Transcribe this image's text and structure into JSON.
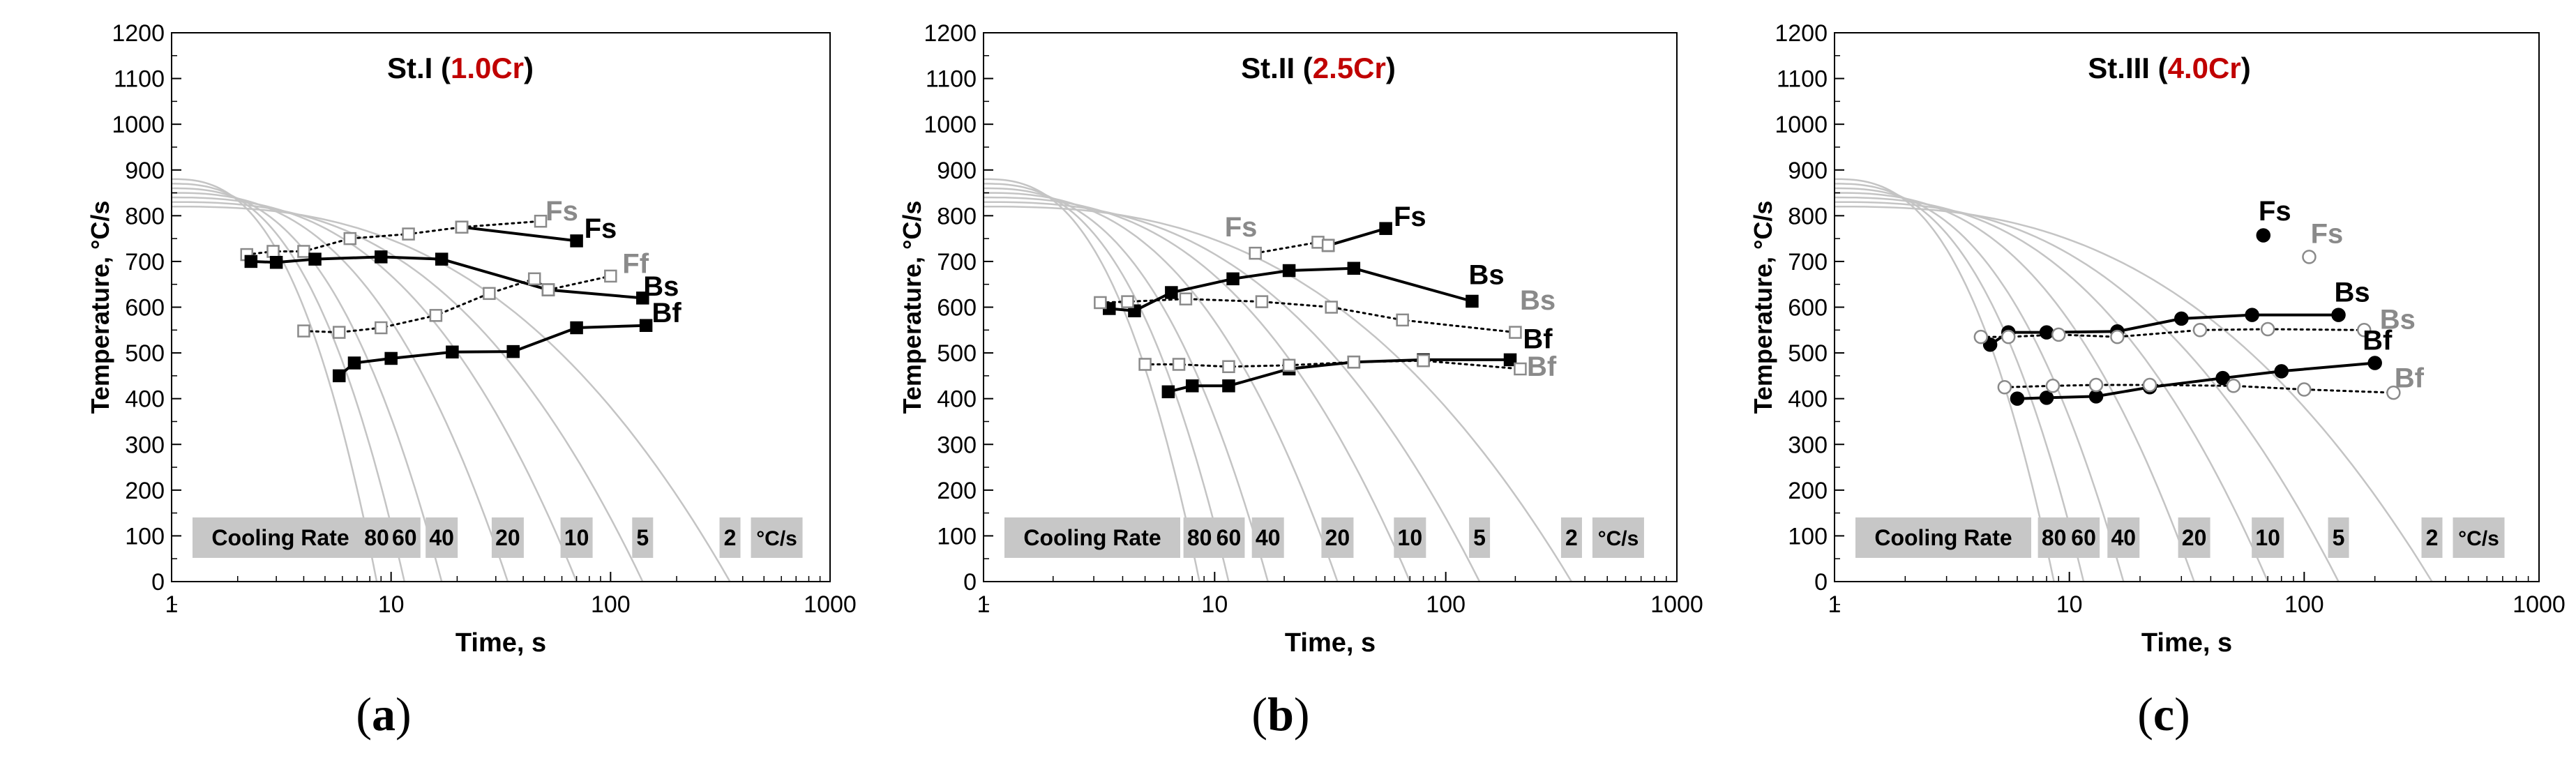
{
  "figure": {
    "axis_labels": {
      "x": "Time, s",
      "y": "Temperature, °C/s"
    },
    "cooling_rate_label": "Cooling Rate",
    "rate_unit": "°C/s",
    "rate_boxes": [
      "80",
      "60",
      "40",
      "20",
      "10",
      "5",
      "2"
    ],
    "colors": {
      "curve": "#c4c4c4",
      "solid": "#000000",
      "open": "#8a8a8a",
      "box": "#c7c7c7",
      "title_accent": "#c00000"
    }
  },
  "panels": [
    {
      "letter": "a",
      "title": "St.I",
      "title_cr": "1.0Cr"
    },
    {
      "letter": "b",
      "title": "St.II",
      "title_cr": "2.5Cr"
    },
    {
      "letter": "c",
      "title": "St.III",
      "title_cr": "4.0Cr"
    }
  ],
  "chart_data": [
    {
      "type": "line",
      "title": "St.I (1.0Cr)",
      "xlabel": "Time, s",
      "ylabel": "Temperature, °C/s",
      "xscale": "log",
      "xlim": [
        1,
        1000
      ],
      "ylim": [
        0,
        1200
      ],
      "xticks": [
        "1",
        "10",
        "100",
        "1000"
      ],
      "yticks": [
        "0",
        "100",
        "200",
        "300",
        "400",
        "500",
        "600",
        "700",
        "800",
        "900",
        "1000",
        "1100",
        "1200"
      ],
      "cooling_curves": [
        {
          "rate": "80",
          "end_time": 8.6
        },
        {
          "rate": "60",
          "end_time": 11.5
        },
        {
          "rate": "40",
          "end_time": 17
        },
        {
          "rate": "20",
          "end_time": 34
        },
        {
          "rate": "10",
          "end_time": 70
        },
        {
          "rate": "5",
          "end_time": 140
        },
        {
          "rate": "2",
          "end_time": 350
        }
      ],
      "series": [
        {
          "name": "Fs",
          "marker": "filled-square",
          "style": "solid",
          "points": [
            [
              21,
              775
            ],
            [
              70,
              745
            ]
          ]
        },
        {
          "name": "Fs",
          "marker": "open-square",
          "style": "dotted",
          "points": [
            [
              21,
              775
            ],
            [
              48,
              788
            ]
          ]
        },
        {
          "name": "Ff",
          "marker": "open-square",
          "style": "dotted",
          "points": [
            [
              2.2,
              715
            ],
            [
              2.9,
              722
            ],
            [
              4,
              722
            ],
            [
              6.5,
              750
            ],
            [
              12,
              760
            ],
            [
              21,
              775
            ]
          ]
        },
        {
          "name": "Bs",
          "marker": "filled-square",
          "style": "solid",
          "points": [
            [
              2.3,
              700
            ],
            [
              3,
              698
            ],
            [
              4.5,
              705
            ],
            [
              9,
              710
            ],
            [
              17,
              705
            ],
            [
              52,
              638
            ],
            [
              140,
              620
            ]
          ]
        },
        {
          "name": "Ff",
          "marker": "open-square",
          "style": "dotted",
          "points": [
            [
              52,
              638
            ],
            [
              100,
              668
            ]
          ]
        },
        {
          "name": "Bs",
          "marker": "open-square",
          "style": "dotted",
          "points": [
            [
              4,
              548
            ],
            [
              5.8,
              545
            ],
            [
              9,
              555
            ],
            [
              16,
              582
            ],
            [
              28,
              630
            ],
            [
              45,
              662
            ],
            [
              52,
              638
            ]
          ]
        },
        {
          "name": "Bf",
          "marker": "filled-square",
          "style": "solid",
          "points": [
            [
              5.8,
              450
            ],
            [
              6.8,
              478
            ],
            [
              10,
              488
            ],
            [
              19,
              502
            ],
            [
              36,
              503
            ],
            [
              70,
              555
            ],
            [
              145,
              560
            ]
          ]
        }
      ],
      "labels": [
        {
          "text": "Fs",
          "color": "gray",
          "at": [
            60,
            790
          ]
        },
        {
          "text": "Fs",
          "color": "black",
          "at": [
            90,
            752
          ]
        },
        {
          "text": "Ff",
          "color": "gray",
          "at": [
            130,
            675
          ]
        },
        {
          "text": "Bs",
          "color": "black",
          "at": [
            170,
            625
          ]
        },
        {
          "text": "Bf",
          "color": "black",
          "at": [
            180,
            567
          ]
        }
      ]
    },
    {
      "type": "line",
      "title": "St.II (2.5Cr)",
      "xlabel": "Time, s",
      "ylabel": "Temperature, °C/s",
      "xscale": "log",
      "xlim": [
        1,
        1000
      ],
      "ylim": [
        0,
        1200
      ],
      "xticks": [
        "1",
        "10",
        "100",
        "1000"
      ],
      "yticks": [
        "0",
        "100",
        "200",
        "300",
        "400",
        "500",
        "600",
        "700",
        "800",
        "900",
        "1000",
        "1100",
        "1200"
      ],
      "cooling_curves": [
        {
          "rate": "80",
          "end_time": 8.6
        },
        {
          "rate": "60",
          "end_time": 11.5
        },
        {
          "rate": "40",
          "end_time": 17
        },
        {
          "rate": "20",
          "end_time": 34
        },
        {
          "rate": "10",
          "end_time": 70
        },
        {
          "rate": "5",
          "end_time": 140
        },
        {
          "rate": "2",
          "end_time": 350
        }
      ],
      "series": [
        {
          "name": "Fs",
          "marker": "filled-square",
          "style": "solid",
          "points": [
            [
              31,
              735
            ],
            [
              55,
              772
            ]
          ]
        },
        {
          "name": "Fs",
          "marker": "open-square",
          "style": "dotted",
          "points": [
            [
              15,
              718
            ],
            [
              28,
              742
            ],
            [
              31,
              735
            ]
          ]
        },
        {
          "name": "Bs",
          "marker": "filled-square",
          "style": "solid",
          "points": [
            [
              3.5,
              597
            ],
            [
              4.5,
              592
            ],
            [
              6.5,
              632
            ],
            [
              12,
              662
            ],
            [
              21,
              680
            ],
            [
              40,
              685
            ],
            [
              130,
              613
            ]
          ]
        },
        {
          "name": "Bs",
          "marker": "open-square",
          "style": "dotted",
          "points": [
            [
              3.2,
              610
            ],
            [
              4.2,
              612
            ],
            [
              7.5,
              618
            ],
            [
              16,
              612
            ],
            [
              32,
              600
            ],
            [
              65,
              572
            ],
            [
              200,
              545
            ]
          ]
        },
        {
          "name": "Bf",
          "marker": "filled-square",
          "style": "solid",
          "points": [
            [
              6.3,
              415
            ],
            [
              8,
              428
            ],
            [
              11.5,
              428
            ],
            [
              21,
              465
            ],
            [
              40,
              480
            ],
            [
              80,
              485
            ],
            [
              190,
              485
            ]
          ]
        },
        {
          "name": "Bf",
          "marker": "open-square",
          "style": "dotted",
          "points": [
            [
              5,
              475
            ],
            [
              7,
              475
            ],
            [
              11.5,
              470
            ],
            [
              21,
              473
            ],
            [
              40,
              480
            ],
            [
              80,
              483
            ],
            [
              210,
              465
            ]
          ]
        }
      ],
      "labels": [
        {
          "text": "Fs",
          "color": "gray",
          "at": [
            13,
            755
          ]
        },
        {
          "text": "Fs",
          "color": "black",
          "at": [
            70,
            778
          ]
        },
        {
          "text": "Bs",
          "color": "black",
          "at": [
            150,
            650
          ]
        },
        {
          "text": "Bs",
          "color": "gray",
          "at": [
            250,
            595
          ]
        },
        {
          "text": "Bf",
          "color": "black",
          "at": [
            250,
            510
          ]
        },
        {
          "text": "Bf",
          "color": "gray",
          "at": [
            260,
            450
          ]
        }
      ]
    },
    {
      "type": "line",
      "title": "St.III (4.0Cr)",
      "xlabel": "Time, s",
      "ylabel": "Temperature, °C/s",
      "xscale": "log",
      "xlim": [
        1,
        1000
      ],
      "ylim": [
        0,
        1200
      ],
      "xticks": [
        "1",
        "10",
        "100",
        "1000"
      ],
      "yticks": [
        "0",
        "100",
        "200",
        "300",
        "400",
        "500",
        "600",
        "700",
        "800",
        "900",
        "1000",
        "1100",
        "1200"
      ],
      "cooling_curves": [
        {
          "rate": "80",
          "end_time": 8.6
        },
        {
          "rate": "60",
          "end_time": 11.5
        },
        {
          "rate": "40",
          "end_time": 17
        },
        {
          "rate": "20",
          "end_time": 34
        },
        {
          "rate": "10",
          "end_time": 70
        },
        {
          "rate": "5",
          "end_time": 140
        },
        {
          "rate": "2",
          "end_time": 350
        }
      ],
      "series": [
        {
          "name": "Fs",
          "marker": "filled-circle",
          "style": "none",
          "points": [
            [
              67,
              757
            ]
          ]
        },
        {
          "name": "Fs",
          "marker": "open-circle",
          "style": "none",
          "points": [
            [
              105,
              710
            ]
          ]
        },
        {
          "name": "Bs",
          "marker": "filled-circle",
          "style": "solid",
          "points": [
            [
              4.6,
              518
            ],
            [
              5.5,
              545
            ],
            [
              8,
              545
            ],
            [
              16,
              547
            ],
            [
              30,
              575
            ],
            [
              60,
              583
            ],
            [
              140,
              583
            ]
          ]
        },
        {
          "name": "Bs",
          "marker": "open-circle",
          "style": "dotted",
          "points": [
            [
              4.2,
              535
            ],
            [
              5.5,
              535
            ],
            [
              9,
              540
            ],
            [
              16,
              535
            ],
            [
              36,
              550
            ],
            [
              70,
              552
            ],
            [
              180,
              550
            ]
          ]
        },
        {
          "name": "Bf",
          "marker": "filled-circle",
          "style": "solid",
          "points": [
            [
              6,
              400
            ],
            [
              8,
              402
            ],
            [
              13,
              405
            ],
            [
              22,
              425
            ],
            [
              45,
              445
            ],
            [
              80,
              460
            ],
            [
              200,
              478
            ]
          ]
        },
        {
          "name": "Bf",
          "marker": "open-circle",
          "style": "dotted",
          "points": [
            [
              5.3,
              425
            ],
            [
              8.5,
              428
            ],
            [
              13,
              430
            ],
            [
              22,
              430
            ],
            [
              50,
              428
            ],
            [
              100,
              420
            ],
            [
              240,
              413
            ]
          ]
        }
      ],
      "labels": [
        {
          "text": "Fs",
          "color": "black",
          "at": [
            75,
            790
          ]
        },
        {
          "text": "Fs",
          "color": "gray",
          "at": [
            125,
            740
          ]
        },
        {
          "text": "Bs",
          "color": "black",
          "at": [
            160,
            612
          ]
        },
        {
          "text": "Bs",
          "color": "gray",
          "at": [
            250,
            553
          ]
        },
        {
          "text": "Bf",
          "color": "black",
          "at": [
            205,
            507
          ]
        },
        {
          "text": "Bf",
          "color": "gray",
          "at": [
            280,
            425
          ]
        }
      ]
    }
  ]
}
